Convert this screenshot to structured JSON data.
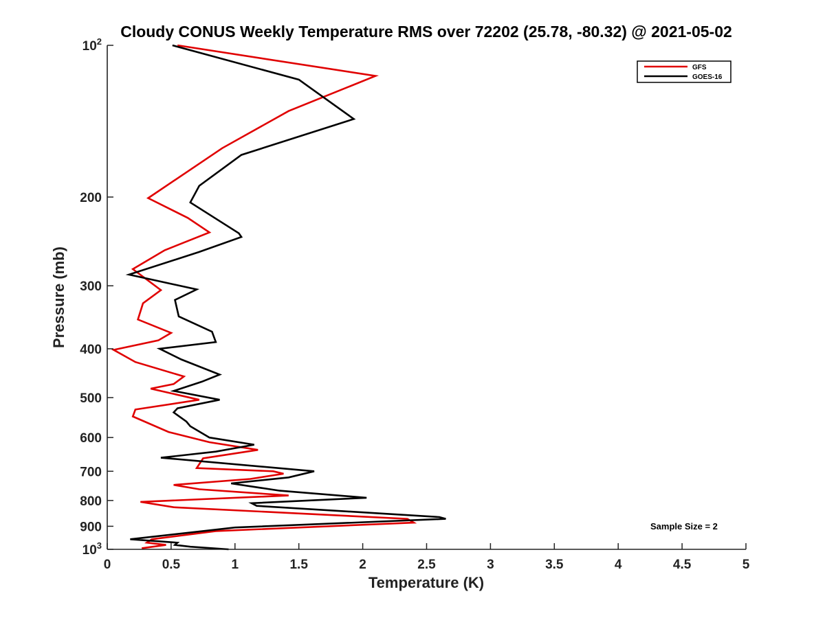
{
  "chart_data": {
    "type": "line",
    "title": "Cloudy CONUS Weekly Temperature RMS over 72202 (25.78, -80.32) @ 2021-05-02",
    "xlabel": "Temperature (K)",
    "ylabel": "Pressure (mb)",
    "xlim": [
      0,
      5
    ],
    "ylim": [
      100,
      1000
    ],
    "yscale": "log",
    "y_reversed": true,
    "x_ticks": [
      "0",
      "0.5",
      "1",
      "1.5",
      "2",
      "2.5",
      "3",
      "3.5",
      "4",
      "4.5",
      "5"
    ],
    "x_tick_values": [
      0,
      0.5,
      1,
      1.5,
      2,
      2.5,
      3,
      3.5,
      4,
      4.5,
      5
    ],
    "y_ticks": [
      {
        "value": 100,
        "base": "10",
        "exp": "2"
      },
      {
        "value": 200,
        "label": "200"
      },
      {
        "value": 300,
        "label": "300"
      },
      {
        "value": 400,
        "label": "400"
      },
      {
        "value": 500,
        "label": "500"
      },
      {
        "value": 600,
        "label": "600"
      },
      {
        "value": 700,
        "label": "700"
      },
      {
        "value": 800,
        "label": "800"
      },
      {
        "value": 900,
        "label": "900"
      },
      {
        "value": 1000,
        "base": "10",
        "exp": "3"
      }
    ],
    "grid": false,
    "legend_position": "top-right",
    "annotation": "Sample Size = 2",
    "series": [
      {
        "name": "GFS",
        "color": "#e00000",
        "points": [
          [
            0.55,
            100
          ],
          [
            2.1,
            115
          ],
          [
            1.42,
            135
          ],
          [
            0.9,
            160
          ],
          [
            0.6,
            180
          ],
          [
            0.32,
            201
          ],
          [
            0.63,
            220
          ],
          [
            0.8,
            235
          ],
          [
            0.45,
            255
          ],
          [
            0.2,
            278
          ],
          [
            0.42,
            306
          ],
          [
            0.28,
            325
          ],
          [
            0.24,
            350
          ],
          [
            0.5,
            372
          ],
          [
            0.4,
            385
          ],
          [
            0.05,
            402
          ],
          [
            0.22,
            425
          ],
          [
            0.6,
            454
          ],
          [
            0.52,
            470
          ],
          [
            0.34,
            480
          ],
          [
            0.72,
            505
          ],
          [
            0.22,
            528
          ],
          [
            0.2,
            545
          ],
          [
            0.48,
            585
          ],
          [
            0.8,
            613
          ],
          [
            1.18,
            635
          ],
          [
            0.75,
            660
          ],
          [
            0.7,
            690
          ],
          [
            1.3,
            700
          ],
          [
            1.38,
            708
          ],
          [
            1.12,
            725
          ],
          [
            0.52,
            745
          ],
          [
            0.72,
            760
          ],
          [
            1.42,
            782
          ],
          [
            0.26,
            805
          ],
          [
            0.52,
            825
          ],
          [
            2.35,
            870
          ],
          [
            2.4,
            885
          ],
          [
            0.85,
            920
          ],
          [
            0.35,
            955
          ],
          [
            0.31,
            970
          ],
          [
            0.46,
            980
          ],
          [
            0.27,
            995
          ]
        ]
      },
      {
        "name": "GOES-16",
        "color": "#000000",
        "points": [
          [
            0.51,
            100
          ],
          [
            1.5,
            117
          ],
          [
            1.93,
            140
          ],
          [
            1.05,
            165
          ],
          [
            0.72,
            190
          ],
          [
            0.65,
            205
          ],
          [
            1.03,
            236
          ],
          [
            1.05,
            240
          ],
          [
            0.72,
            257
          ],
          [
            0.17,
            285
          ],
          [
            0.7,
            305
          ],
          [
            0.53,
            320
          ],
          [
            0.56,
            345
          ],
          [
            0.82,
            370
          ],
          [
            0.85,
            388
          ],
          [
            0.41,
            400
          ],
          [
            0.58,
            420
          ],
          [
            0.88,
            450
          ],
          [
            0.74,
            465
          ],
          [
            0.52,
            485
          ],
          [
            0.88,
            505
          ],
          [
            0.55,
            525
          ],
          [
            0.52,
            535
          ],
          [
            0.62,
            558
          ],
          [
            0.65,
            570
          ],
          [
            0.8,
            600
          ],
          [
            1.15,
            620
          ],
          [
            0.85,
            640
          ],
          [
            0.42,
            658
          ],
          [
            1.62,
            700
          ],
          [
            1.42,
            720
          ],
          [
            0.97,
            740
          ],
          [
            1.35,
            765
          ],
          [
            2.03,
            790
          ],
          [
            1.13,
            810
          ],
          [
            1.17,
            820
          ],
          [
            2.6,
            863
          ],
          [
            2.65,
            870
          ],
          [
            1.0,
            905
          ],
          [
            0.18,
            955
          ],
          [
            0.55,
            970
          ],
          [
            0.53,
            980
          ],
          [
            0.65,
            988
          ],
          [
            0.95,
            1000
          ]
        ]
      }
    ]
  }
}
